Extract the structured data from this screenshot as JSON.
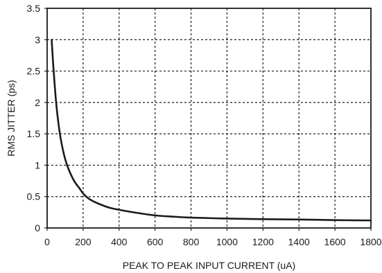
{
  "chart_data": {
    "type": "line",
    "title": "",
    "xlabel": "PEAK TO PEAK INPUT CURRENT (uA)",
    "ylabel": "RMS JITTER (ps)",
    "xlim": [
      0,
      1800
    ],
    "ylim": [
      0,
      3.5
    ],
    "x_ticks": [
      0,
      200,
      400,
      600,
      800,
      1000,
      1200,
      1400,
      1600,
      1800
    ],
    "x_tick_labels": [
      "0",
      "200",
      "400",
      "600",
      "800",
      "1000",
      "1200",
      "1400",
      "1600",
      "1800"
    ],
    "y_ticks": [
      0,
      0.5,
      1,
      1.5,
      2,
      2.5,
      3,
      3.5
    ],
    "y_tick_labels": [
      "0",
      "0.5",
      "1",
      "1.5",
      "2",
      "2.5",
      "3",
      "3.5"
    ],
    "grid": true,
    "grid_style": "dotted",
    "line_color": "#1a1a1a",
    "series": [
      {
        "x": [
          25,
          35,
          50,
          65,
          80,
          100,
          120,
          150,
          180,
          200,
          230,
          260,
          300,
          350,
          400,
          500,
          600,
          700,
          800,
          1000,
          1200,
          1400,
          1600,
          1800
        ],
        "y": [
          3.0,
          2.55,
          2.0,
          1.62,
          1.35,
          1.1,
          0.93,
          0.75,
          0.63,
          0.55,
          0.47,
          0.42,
          0.37,
          0.32,
          0.29,
          0.24,
          0.2,
          0.18,
          0.165,
          0.15,
          0.14,
          0.135,
          0.125,
          0.12
        ]
      }
    ]
  }
}
